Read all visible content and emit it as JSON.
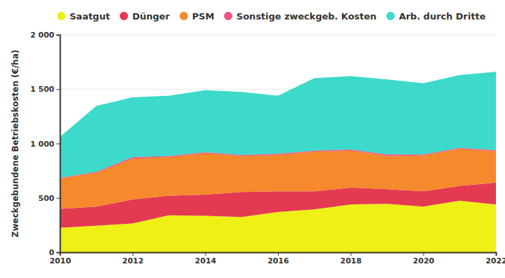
{
  "chart_data": {
    "type": "area",
    "stacked": true,
    "grid": true,
    "legend": "top",
    "y_label": "Zweckgebundene Betriebskosten (€/ha)",
    "x": [
      2010,
      2011,
      2012,
      2013,
      2014,
      2015,
      2016,
      2017,
      2018,
      2019,
      2020,
      2021,
      2022
    ],
    "xlim": [
      2010,
      2022
    ],
    "xticks": [
      2010,
      2012,
      2014,
      2016,
      2018,
      2020,
      2022
    ],
    "ylim": [
      0,
      2000
    ],
    "yticks": [
      0,
      500,
      {
        "value": 1000,
        "label": "1 000"
      },
      {
        "value": 1500,
        "label": "1 500"
      },
      {
        "value": 2000,
        "label": "2 000"
      }
    ],
    "series": [
      {
        "name": "Saatgut",
        "color": "#eef016",
        "values": [
          225,
          245,
          265,
          340,
          335,
          325,
          370,
          395,
          440,
          445,
          420,
          475,
          440
        ]
      },
      {
        "name": "Dünger",
        "color": "#e33a52",
        "values": [
          175,
          175,
          220,
          180,
          195,
          230,
          190,
          165,
          155,
          135,
          140,
          135,
          200
        ]
      },
      {
        "name": "PSM",
        "color": "#f5892c",
        "values": [
          280,
          310,
          375,
          355,
          380,
          330,
          335,
          365,
          340,
          305,
          330,
          340,
          290
        ]
      },
      {
        "name": "Sonstige zweckgeb. Kosten",
        "color": "#f0567c",
        "values": [
          5,
          10,
          15,
          10,
          10,
          10,
          10,
          10,
          10,
          15,
          10,
          10,
          10
        ]
      },
      {
        "name": "Arb. durch Dritte",
        "color": "#3dd9ca",
        "values": [
          375,
          605,
          550,
          555,
          570,
          580,
          535,
          665,
          675,
          690,
          655,
          670,
          720
        ]
      }
    ]
  }
}
